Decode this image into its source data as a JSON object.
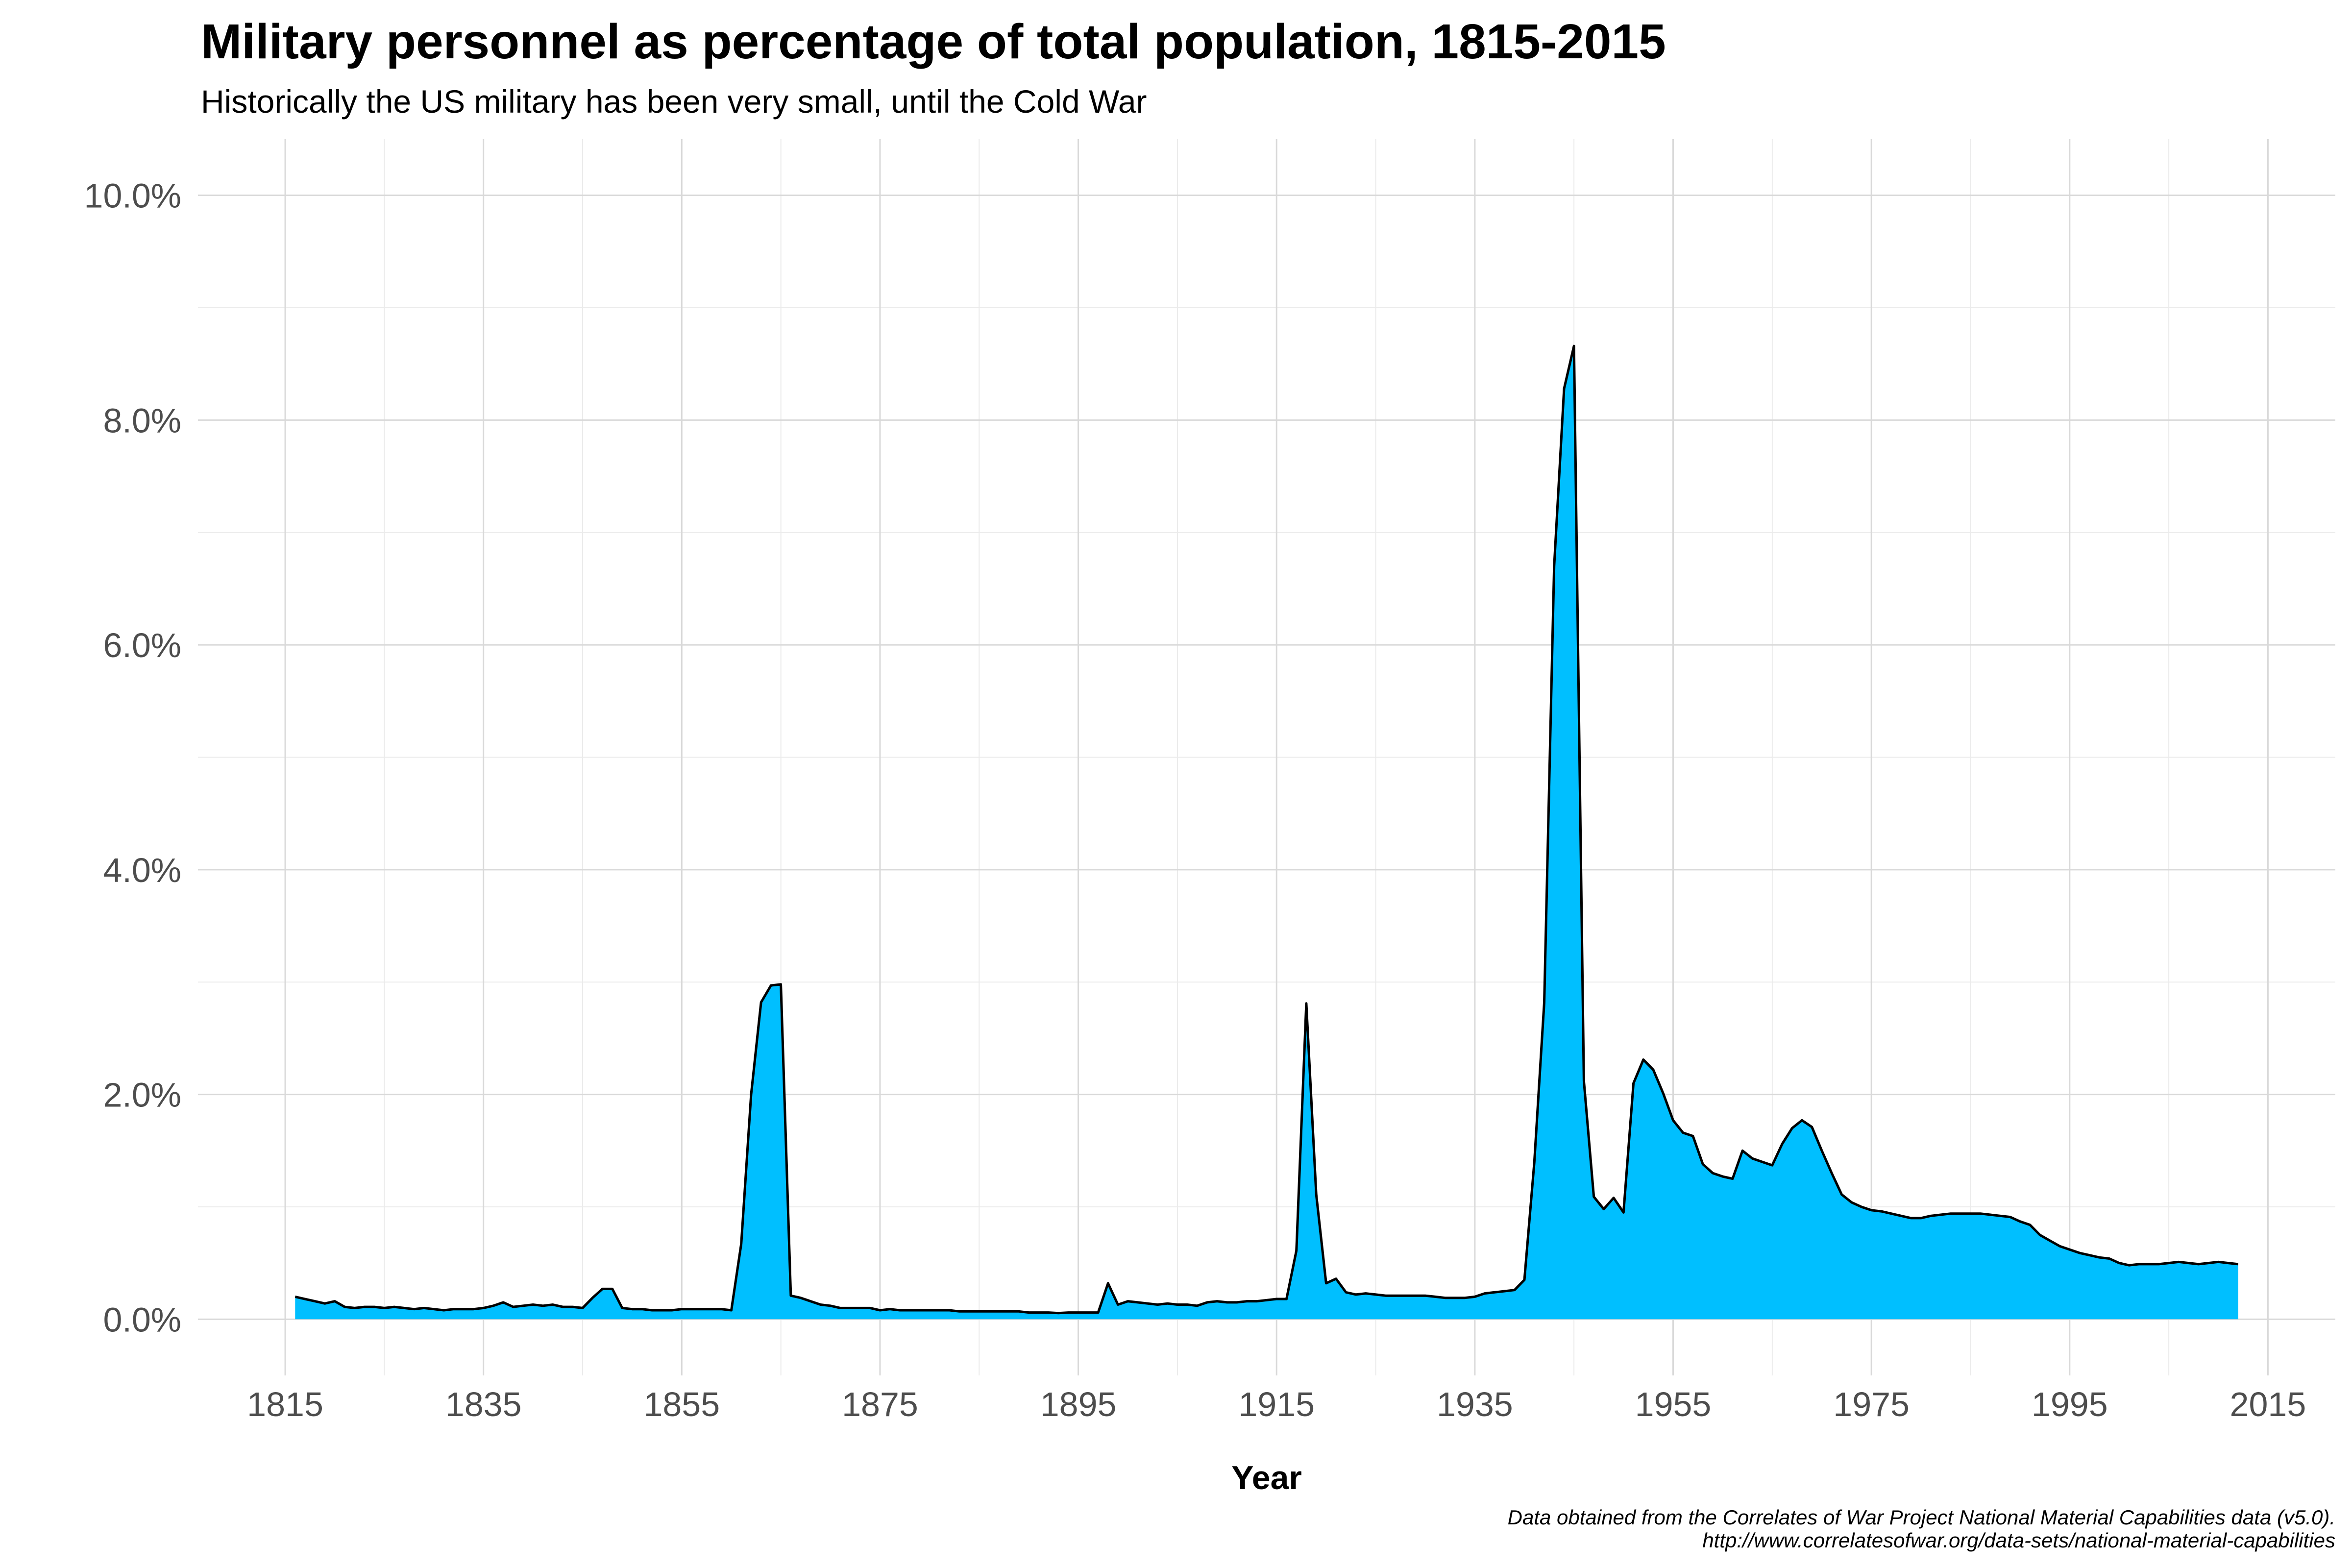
{
  "chart_data": {
    "type": "area",
    "title": "Military personnel as percentage of total population, 1815-2015",
    "subtitle": "Historically the US military has been very small, until the Cold War",
    "xlabel": "Year",
    "ylabel": "",
    "caption": [
      "Data obtained from the Correlates of War Project National Material Capabilities data (v5.0).",
      "http://www.correlatesofwar.org/data-sets/national-material-capabilities"
    ],
    "xlim": [
      1806.2,
      2021.8
    ],
    "ylim": [
      -0.5,
      10.5
    ],
    "x_ticks": [
      1815,
      1835,
      1855,
      1875,
      1895,
      1915,
      1935,
      1955,
      1975,
      1995,
      2015
    ],
    "x_tick_labels": [
      "1815",
      "1835",
      "1855",
      "1875",
      "1895",
      "1915",
      "1935",
      "1955",
      "1975",
      "1995",
      "2015"
    ],
    "x_minor_ticks": [
      1825,
      1845,
      1865,
      1885,
      1905,
      1925,
      1945,
      1965,
      1985,
      2005
    ],
    "y_ticks": [
      0,
      2,
      4,
      6,
      8,
      10
    ],
    "y_tick_labels": [
      "0.0%",
      "2.0%",
      "4.0%",
      "6.0%",
      "8.0%",
      "10.0%"
    ],
    "y_minor_ticks": [
      1,
      3,
      5,
      7,
      9
    ],
    "grid": true,
    "legend": "none",
    "fill_color": "#00BFFF",
    "line_color": "#000000",
    "series": [
      {
        "name": "Military personnel (% of population)",
        "x": [
          1816,
          1817,
          1818,
          1819,
          1820,
          1821,
          1822,
          1823,
          1824,
          1825,
          1826,
          1827,
          1828,
          1829,
          1830,
          1831,
          1832,
          1833,
          1834,
          1835,
          1836,
          1837,
          1838,
          1839,
          1840,
          1841,
          1842,
          1843,
          1844,
          1845,
          1846,
          1847,
          1848,
          1849,
          1850,
          1851,
          1852,
          1853,
          1854,
          1855,
          1856,
          1857,
          1858,
          1859,
          1860,
          1861,
          1862,
          1863,
          1864,
          1865,
          1866,
          1867,
          1868,
          1869,
          1870,
          1871,
          1872,
          1873,
          1874,
          1875,
          1876,
          1877,
          1878,
          1879,
          1880,
          1881,
          1882,
          1883,
          1884,
          1885,
          1886,
          1887,
          1888,
          1889,
          1890,
          1891,
          1892,
          1893,
          1894,
          1895,
          1896,
          1897,
          1898,
          1899,
          1900,
          1901,
          1902,
          1903,
          1904,
          1905,
          1906,
          1907,
          1908,
          1909,
          1910,
          1911,
          1912,
          1913,
          1914,
          1915,
          1916,
          1917,
          1918,
          1919,
          1920,
          1921,
          1922,
          1923,
          1924,
          1925,
          1926,
          1927,
          1928,
          1929,
          1930,
          1931,
          1932,
          1933,
          1934,
          1935,
          1936,
          1937,
          1938,
          1939,
          1940,
          1941,
          1942,
          1943,
          1944,
          1945,
          1946,
          1947,
          1948,
          1949,
          1950,
          1951,
          1952,
          1953,
          1954,
          1955,
          1956,
          1957,
          1958,
          1959,
          1960,
          1961,
          1962,
          1963,
          1964,
          1965,
          1966,
          1967,
          1968,
          1969,
          1970,
          1971,
          1972,
          1973,
          1974,
          1975,
          1976,
          1977,
          1978,
          1979,
          1980,
          1981,
          1982,
          1983,
          1984,
          1985,
          1986,
          1987,
          1988,
          1989,
          1990,
          1991,
          1992,
          1993,
          1994,
          1995,
          1996,
          1997,
          1998,
          1999,
          2000,
          2001,
          2002,
          2003,
          2004,
          2005,
          2006,
          2007,
          2008,
          2009,
          2010,
          2011,
          2012
        ],
        "y": [
          0.2,
          0.18,
          0.16,
          0.14,
          0.16,
          0.11,
          0.1,
          0.11,
          0.11,
          0.1,
          0.11,
          0.1,
          0.09,
          0.1,
          0.09,
          0.08,
          0.09,
          0.09,
          0.09,
          0.1,
          0.12,
          0.15,
          0.11,
          0.12,
          0.13,
          0.12,
          0.13,
          0.11,
          0.11,
          0.1,
          0.19,
          0.27,
          0.27,
          0.1,
          0.09,
          0.09,
          0.08,
          0.08,
          0.08,
          0.09,
          0.09,
          0.09,
          0.09,
          0.09,
          0.08,
          0.67,
          2.0,
          2.82,
          2.97,
          2.98,
          0.21,
          0.19,
          0.16,
          0.13,
          0.12,
          0.1,
          0.1,
          0.1,
          0.1,
          0.08,
          0.09,
          0.08,
          0.08,
          0.08,
          0.08,
          0.08,
          0.08,
          0.07,
          0.07,
          0.07,
          0.07,
          0.07,
          0.07,
          0.07,
          0.06,
          0.06,
          0.06,
          0.055,
          0.06,
          0.06,
          0.06,
          0.06,
          0.32,
          0.13,
          0.16,
          0.15,
          0.14,
          0.13,
          0.14,
          0.13,
          0.13,
          0.12,
          0.15,
          0.16,
          0.15,
          0.15,
          0.16,
          0.16,
          0.17,
          0.18,
          0.18,
          0.61,
          2.81,
          1.11,
          0.32,
          0.36,
          0.24,
          0.22,
          0.23,
          0.22,
          0.21,
          0.21,
          0.21,
          0.21,
          0.21,
          0.2,
          0.19,
          0.19,
          0.19,
          0.2,
          0.23,
          0.24,
          0.25,
          0.26,
          0.35,
          1.4,
          2.82,
          6.7,
          8.28,
          8.66,
          2.12,
          1.09,
          0.98,
          1.08,
          0.95,
          2.1,
          2.31,
          2.22,
          2.01,
          1.77,
          1.66,
          1.63,
          1.38,
          1.3,
          1.27,
          1.25,
          1.5,
          1.43,
          1.4,
          1.37,
          1.56,
          1.7,
          1.77,
          1.71,
          1.5,
          1.3,
          1.11,
          1.04,
          1.0,
          0.97,
          0.96,
          0.94,
          0.92,
          0.9,
          0.9,
          0.92,
          0.93,
          0.94,
          0.94,
          0.94,
          0.94,
          0.93,
          0.92,
          0.91,
          0.87,
          0.84,
          0.75,
          0.7,
          0.65,
          0.62,
          0.59,
          0.57,
          0.55,
          0.54,
          0.5,
          0.48,
          0.49,
          0.49,
          0.49,
          0.5,
          0.51,
          0.5,
          0.49,
          0.5,
          0.51,
          0.5,
          0.49
        ]
      }
    ]
  }
}
